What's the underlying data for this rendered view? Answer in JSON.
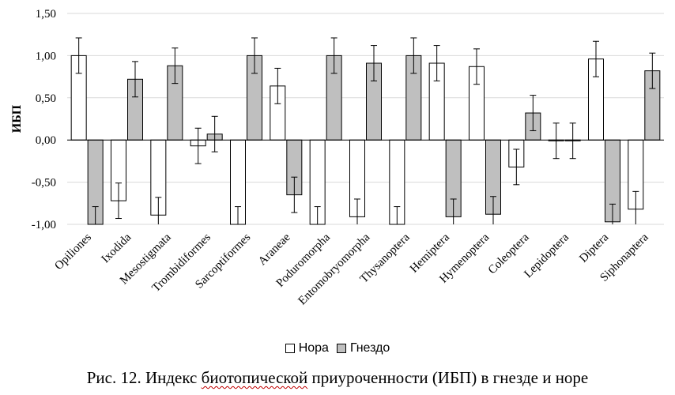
{
  "chart_data": {
    "type": "bar",
    "ylabel": "ИБП",
    "ylim": [
      -1.0,
      1.5
    ],
    "yticks": [
      "1,50",
      "1,00",
      "0,50",
      "0,00",
      "-0,50",
      "-1,00"
    ],
    "ytick_values": [
      1.5,
      1.0,
      0.5,
      0.0,
      -0.5,
      -1.0
    ],
    "grid": true,
    "legend_position": "bottom",
    "categories": [
      "Opiliones",
      "Ixodida",
      "Mesostigmata",
      "Trombidiformes",
      "Sarcoptiformes",
      "Araneae",
      "Poduromorpha",
      "Entomobryomorpha",
      "Thysanoptera",
      "Hemiptera",
      "Hymenoptera",
      "Coleoptera",
      "Lepidoptera",
      "Diptera",
      "Siphonaptera"
    ],
    "series": [
      {
        "name": "Нора",
        "color": "#ffffff",
        "values": [
          1.0,
          -0.72,
          -0.89,
          -0.07,
          -1.0,
          0.64,
          -1.0,
          -0.91,
          -1.0,
          0.91,
          0.87,
          -0.32,
          -0.01,
          0.96,
          -0.82
        ],
        "errors": [
          0.21,
          0.21,
          0.21,
          0.21,
          0.21,
          0.21,
          0.21,
          0.21,
          0.21,
          0.21,
          0.21,
          0.21,
          0.21,
          0.21,
          0.21
        ]
      },
      {
        "name": "Гнездо",
        "color": "#bfbfbf",
        "values": [
          -1.0,
          0.72,
          0.88,
          0.07,
          1.0,
          -0.65,
          1.0,
          0.91,
          1.0,
          -0.91,
          -0.88,
          0.32,
          -0.01,
          -0.97,
          0.82
        ],
        "errors": [
          0.21,
          0.21,
          0.21,
          0.21,
          0.21,
          0.21,
          0.21,
          0.21,
          0.21,
          0.21,
          0.21,
          0.21,
          0.21,
          0.21,
          0.21
        ]
      }
    ]
  },
  "caption": {
    "prefix": "Рис. 12. Индекс ",
    "word": "биотопической",
    "suffix": " приуроченности (ИБП) в гнезде и норе"
  },
  "colors": {
    "grid": "#d9d9d9",
    "axis": "#000000",
    "bar_stroke": "#000000"
  }
}
